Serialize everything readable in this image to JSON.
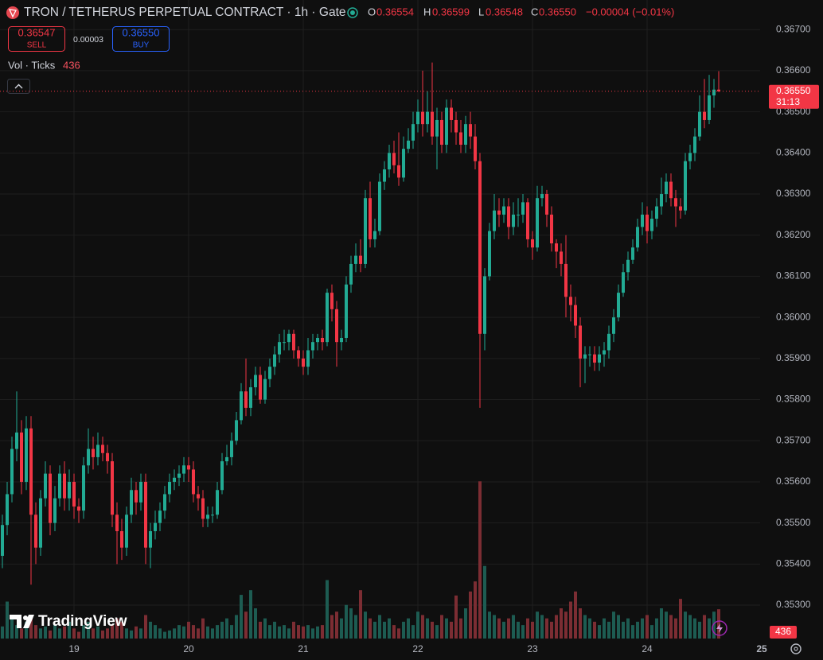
{
  "chart_data": {
    "type": "candlestick",
    "title": "TRON / TETHERUS PERPETUAL CONTRACT · 1h · Gate",
    "legend": [
      {
        "label": "O",
        "value": "0.36554"
      },
      {
        "label": "H",
        "value": "0.36599"
      },
      {
        "label": "L",
        "value": "0.36548"
      },
      {
        "label": "C",
        "value": "0.36550"
      }
    ],
    "change": "−0.00004 (−0.01%)",
    "sell": {
      "price": "0.36547",
      "label": "SELL"
    },
    "spread": "0.00003",
    "buy": {
      "price": "0.36550",
      "label": "BUY"
    },
    "volume_title": "Vol · Ticks",
    "brand": "TradingView",
    "up_color": "#22ab94",
    "down_color": "#f23645",
    "volume_up_color": "#1d5c52",
    "volume_down_color": "#7c2d33",
    "grid": true,
    "ylim": [
      0.35215,
      0.36772
    ],
    "yticks": [
      {
        "value": 0.353,
        "label": "0.35300"
      },
      {
        "value": 0.354,
        "label": "0.35400"
      },
      {
        "value": 0.355,
        "label": "0.35500"
      },
      {
        "value": 0.356,
        "label": "0.35600"
      },
      {
        "value": 0.357,
        "label": "0.35700"
      },
      {
        "value": 0.358,
        "label": "0.35800"
      },
      {
        "value": 0.359,
        "label": "0.35900"
      },
      {
        "value": 0.36,
        "label": "0.36000"
      },
      {
        "value": 0.361,
        "label": "0.36100"
      },
      {
        "value": 0.362,
        "label": "0.36200"
      },
      {
        "value": 0.363,
        "label": "0.36300"
      },
      {
        "value": 0.364,
        "label": "0.36400"
      },
      {
        "value": 0.365,
        "label": "0.36500"
      },
      {
        "value": 0.366,
        "label": "0.36600"
      },
      {
        "value": 0.367,
        "label": "0.36700"
      }
    ],
    "x_labels": [
      "19",
      "20",
      "21",
      "22",
      "23",
      "24",
      "25"
    ],
    "last_price": {
      "value": 0.3655,
      "label": "0.36550"
    },
    "countdown": "31:13",
    "open": [
      0.3542,
      0.35495,
      0.3557,
      0.3568,
      0.3572,
      0.356,
      0.3573,
      0.3552,
      0.3544,
      0.3556,
      0.3562,
      0.355,
      0.3556,
      0.3562,
      0.3556,
      0.356,
      0.3554,
      0.3553,
      0.3564,
      0.3568,
      0.3566,
      0.3569,
      0.3567,
      0.3565,
      0.3552,
      0.3548,
      0.3544,
      0.3552,
      0.3558,
      0.3555,
      0.356,
      0.3544,
      0.3548,
      0.355,
      0.3553,
      0.3557,
      0.356,
      0.3561,
      0.3562,
      0.3564,
      0.3563,
      0.3557,
      0.3556,
      0.3551,
      0.3552,
      0.3552,
      0.3558,
      0.3565,
      0.3566,
      0.357,
      0.3575,
      0.3582,
      0.3578,
      0.3583,
      0.3586,
      0.358,
      0.3585,
      0.3588,
      0.3591,
      0.3594,
      0.3594,
      0.3596,
      0.3592,
      0.359,
      0.3588,
      0.3592,
      0.3594,
      0.3595,
      0.3594,
      0.3606,
      0.3602,
      0.3594,
      0.3595,
      0.3608,
      0.3613,
      0.3615,
      0.3613,
      0.3629,
      0.3619,
      0.3621,
      0.3633,
      0.3636,
      0.364,
      0.3637,
      0.3634,
      0.3641,
      0.3643,
      0.3647,
      0.365,
      0.3647,
      0.365,
      0.3644,
      0.3648,
      0.3642,
      0.3651,
      0.3648,
      0.3645,
      0.3642,
      0.3647,
      0.3644,
      0.3638,
      0.3596,
      0.361,
      0.3621,
      0.3626,
      0.3625,
      0.3627,
      0.3622,
      0.3625,
      0.3625,
      0.3628,
      0.3619,
      0.3617,
      0.3629,
      0.363,
      0.3625,
      0.3618,
      0.3616,
      0.3613,
      0.3605,
      0.3603,
      0.3598,
      0.359,
      0.3591,
      0.3591,
      0.3589,
      0.3591,
      0.3592,
      0.3596,
      0.36,
      0.3606,
      0.3611,
      0.3614,
      0.3617,
      0.3622,
      0.3625,
      0.3621,
      0.3624,
      0.3627,
      0.363,
      0.3633,
      0.3629,
      0.3627,
      0.3626,
      0.3638,
      0.364,
      0.3644,
      0.365,
      0.3648,
      0.3654,
      0.36554
    ],
    "high": [
      0.3552,
      0.356,
      0.3571,
      0.3582,
      0.3575,
      0.3576,
      0.3576,
      0.3555,
      0.3558,
      0.3565,
      0.3564,
      0.3559,
      0.3564,
      0.3565,
      0.3563,
      0.3562,
      0.3556,
      0.3566,
      0.3573,
      0.3571,
      0.3572,
      0.3571,
      0.3569,
      0.3567,
      0.3555,
      0.3551,
      0.3554,
      0.3561,
      0.356,
      0.3562,
      0.3562,
      0.355,
      0.3553,
      0.3555,
      0.3559,
      0.3562,
      0.3563,
      0.3564,
      0.3566,
      0.3566,
      0.3565,
      0.3559,
      0.3558,
      0.3554,
      0.3554,
      0.356,
      0.3567,
      0.3569,
      0.3572,
      0.3577,
      0.3584,
      0.359,
      0.3585,
      0.3588,
      0.3588,
      0.3587,
      0.359,
      0.3593,
      0.3596,
      0.3597,
      0.3597,
      0.3597,
      0.3593,
      0.3592,
      0.3595,
      0.3596,
      0.3596,
      0.3597,
      0.3607,
      0.3608,
      0.3604,
      0.3597,
      0.361,
      0.3615,
      0.3618,
      0.3619,
      0.3631,
      0.3633,
      0.3624,
      0.3635,
      0.3638,
      0.3642,
      0.3643,
      0.3645,
      0.3644,
      0.3646,
      0.365,
      0.3653,
      0.366,
      0.3655,
      0.3662,
      0.3651,
      0.365,
      0.3653,
      0.3653,
      0.365,
      0.3648,
      0.3649,
      0.365,
      0.3647,
      0.364,
      0.3612,
      0.3623,
      0.363,
      0.3629,
      0.3629,
      0.3629,
      0.3628,
      0.3629,
      0.363,
      0.3629,
      0.3621,
      0.3632,
      0.3632,
      0.3631,
      0.3627,
      0.3619,
      0.3618,
      0.362,
      0.3608,
      0.3605,
      0.36,
      0.3593,
      0.3593,
      0.3593,
      0.3593,
      0.3594,
      0.3598,
      0.3602,
      0.3608,
      0.3613,
      0.3616,
      0.3619,
      0.3624,
      0.3628,
      0.3627,
      0.3626,
      0.3629,
      0.3634,
      0.3635,
      0.3635,
      0.3631,
      0.3629,
      0.364,
      0.3642,
      0.3646,
      0.3654,
      0.3658,
      0.3659,
      0.3658,
      0.36599
    ],
    "low": [
      0.3539,
      0.3547,
      0.3555,
      0.3565,
      0.3557,
      0.3558,
      0.3535,
      0.354,
      0.3542,
      0.3554,
      0.3547,
      0.3548,
      0.3554,
      0.3553,
      0.3553,
      0.3551,
      0.355,
      0.3551,
      0.3562,
      0.3563,
      0.3564,
      0.3565,
      0.3562,
      0.3549,
      0.354,
      0.3541,
      0.3542,
      0.355,
      0.3552,
      0.3553,
      0.354,
      0.3539,
      0.3546,
      0.3548,
      0.3551,
      0.3555,
      0.3558,
      0.3559,
      0.356,
      0.356,
      0.3555,
      0.3553,
      0.3549,
      0.3549,
      0.355,
      0.3551,
      0.3557,
      0.3564,
      0.3564,
      0.3569,
      0.3574,
      0.3576,
      0.3576,
      0.3581,
      0.3579,
      0.3579,
      0.3583,
      0.3586,
      0.3589,
      0.3592,
      0.3592,
      0.359,
      0.3588,
      0.3586,
      0.3586,
      0.359,
      0.3592,
      0.3592,
      0.3593,
      0.3599,
      0.3588,
      0.3592,
      0.3594,
      0.3606,
      0.3611,
      0.3611,
      0.3612,
      0.3617,
      0.3617,
      0.362,
      0.3631,
      0.3634,
      0.3635,
      0.3632,
      0.3633,
      0.364,
      0.3641,
      0.3645,
      0.3644,
      0.3645,
      0.3642,
      0.3636,
      0.364,
      0.364,
      0.3645,
      0.3642,
      0.364,
      0.364,
      0.3641,
      0.3636,
      0.3578,
      0.3592,
      0.3609,
      0.3619,
      0.3622,
      0.3623,
      0.3619,
      0.362,
      0.3622,
      0.3623,
      0.3617,
      0.3614,
      0.3616,
      0.3627,
      0.3622,
      0.3616,
      0.3612,
      0.361,
      0.36,
      0.3599,
      0.3595,
      0.3583,
      0.3584,
      0.3588,
      0.3587,
      0.3587,
      0.3588,
      0.359,
      0.3594,
      0.3599,
      0.3605,
      0.3609,
      0.3613,
      0.3616,
      0.362,
      0.3618,
      0.3619,
      0.3622,
      0.3625,
      0.3628,
      0.3627,
      0.3622,
      0.3624,
      0.3625,
      0.3636,
      0.3638,
      0.3643,
      0.3646,
      0.3647,
      0.3651,
      0.36548
    ],
    "close": [
      0.35495,
      0.3557,
      0.3568,
      0.3572,
      0.356,
      0.3573,
      0.3552,
      0.3544,
      0.3556,
      0.3562,
      0.355,
      0.3556,
      0.3562,
      0.3556,
      0.356,
      0.3554,
      0.3553,
      0.3564,
      0.3568,
      0.3566,
      0.3569,
      0.3567,
      0.3565,
      0.3552,
      0.3548,
      0.3544,
      0.3552,
      0.3558,
      0.3555,
      0.356,
      0.3544,
      0.3548,
      0.355,
      0.3553,
      0.3557,
      0.356,
      0.3561,
      0.3562,
      0.3564,
      0.3563,
      0.3557,
      0.3556,
      0.3551,
      0.3552,
      0.3552,
      0.3558,
      0.3565,
      0.3566,
      0.357,
      0.3575,
      0.3582,
      0.3578,
      0.3583,
      0.3586,
      0.358,
      0.3585,
      0.3588,
      0.3591,
      0.3594,
      0.3594,
      0.3596,
      0.3592,
      0.359,
      0.3588,
      0.3592,
      0.3594,
      0.3595,
      0.3594,
      0.3606,
      0.3602,
      0.3594,
      0.3595,
      0.3608,
      0.3613,
      0.3615,
      0.3613,
      0.3629,
      0.3619,
      0.3621,
      0.3633,
      0.3636,
      0.364,
      0.3637,
      0.3634,
      0.3641,
      0.3643,
      0.3647,
      0.365,
      0.3647,
      0.365,
      0.3644,
      0.3648,
      0.3642,
      0.3651,
      0.3648,
      0.3645,
      0.3642,
      0.3647,
      0.3644,
      0.3638,
      0.3596,
      0.361,
      0.3621,
      0.3626,
      0.3625,
      0.3627,
      0.3622,
      0.3625,
      0.3625,
      0.3628,
      0.3619,
      0.3617,
      0.3629,
      0.363,
      0.3625,
      0.3618,
      0.3616,
      0.3613,
      0.3605,
      0.3603,
      0.3598,
      0.359,
      0.3591,
      0.3591,
      0.3589,
      0.3591,
      0.3592,
      0.3596,
      0.36,
      0.3606,
      0.3611,
      0.3614,
      0.3617,
      0.3622,
      0.3625,
      0.3621,
      0.3624,
      0.3627,
      0.363,
      0.3633,
      0.3629,
      0.3627,
      0.3626,
      0.3638,
      0.364,
      0.3644,
      0.365,
      0.3648,
      0.3654,
      0.36554,
      0.3655
    ],
    "volume": [
      180,
      550,
      300,
      200,
      150,
      250,
      300,
      200,
      150,
      180,
      120,
      200,
      150,
      180,
      250,
      150,
      100,
      200,
      250,
      150,
      180,
      120,
      150,
      200,
      300,
      250,
      150,
      120,
      180,
      150,
      350,
      250,
      200,
      150,
      100,
      120,
      150,
      200,
      180,
      250,
      200,
      150,
      300,
      180,
      150,
      200,
      250,
      300,
      200,
      350,
      650,
      400,
      720,
      450,
      250,
      300,
      200,
      250,
      180,
      200,
      150,
      250,
      200,
      180,
      200,
      150,
      180,
      200,
      870,
      350,
      400,
      300,
      500,
      450,
      350,
      720,
      400,
      300,
      250,
      350,
      250,
      300,
      200,
      150,
      250,
      300,
      200,
      400,
      350,
      300,
      250,
      200,
      350,
      300,
      250,
      640,
      300,
      450,
      700,
      850,
      2340,
      1080,
      400,
      350,
      300,
      250,
      300,
      350,
      250,
      200,
      300,
      250,
      400,
      350,
      300,
      250,
      350,
      450,
      400,
      550,
      700,
      450,
      350,
      300,
      250,
      200,
      300,
      250,
      400,
      350,
      250,
      300,
      200,
      250,
      300,
      350,
      200,
      300,
      450,
      400,
      350,
      300,
      590,
      400,
      350,
      300,
      250,
      350,
      300,
      400,
      436
    ]
  }
}
